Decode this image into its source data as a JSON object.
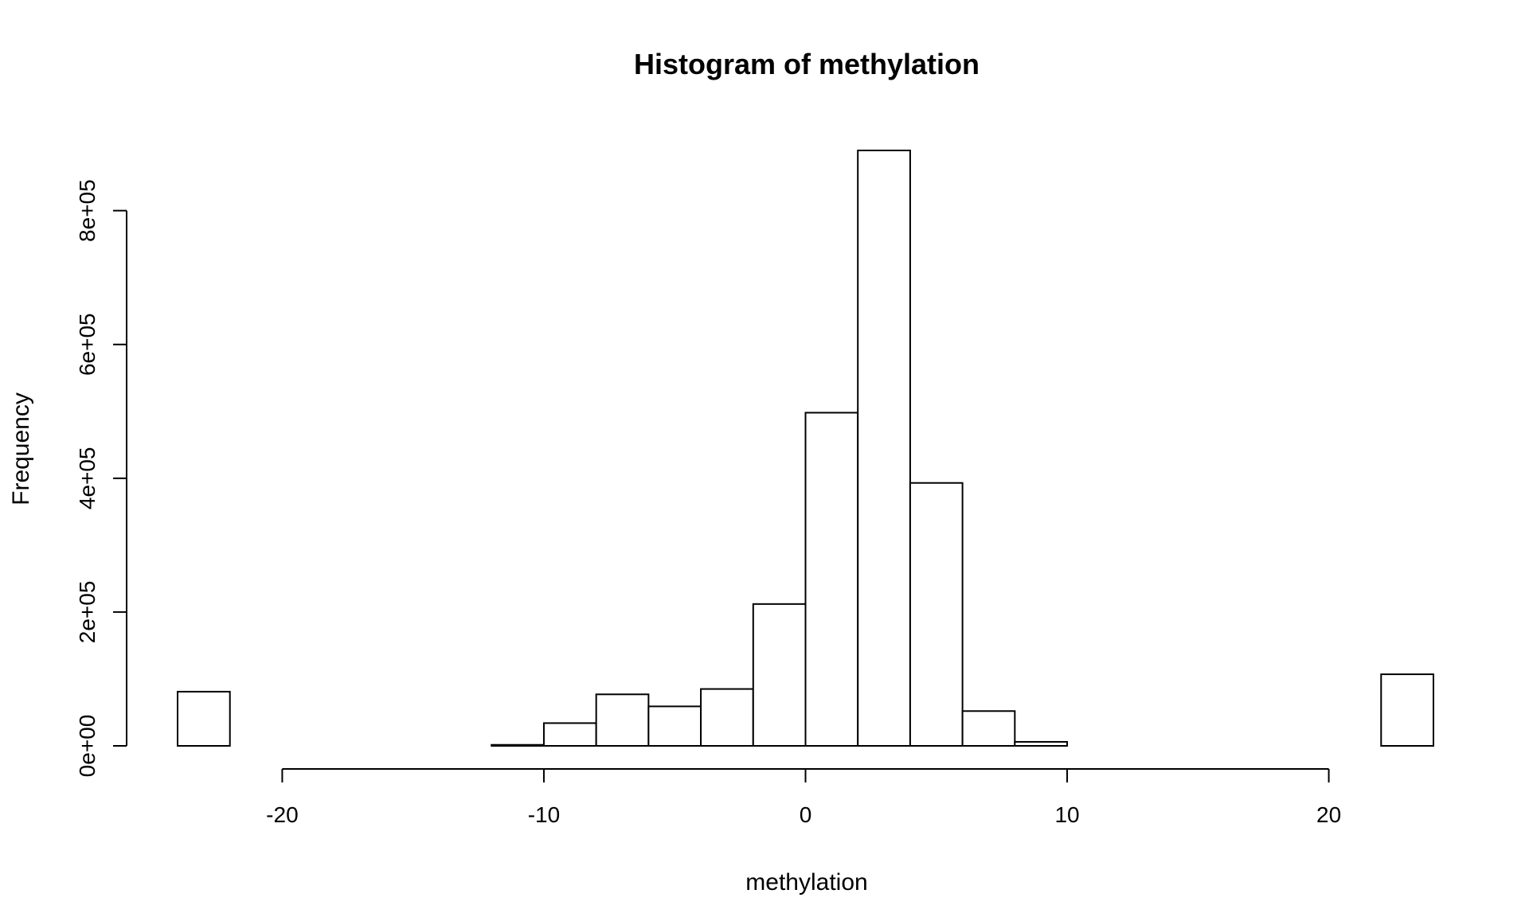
{
  "chart_data": {
    "type": "bar",
    "title": "Histogram of methylation",
    "xlabel": "methylation",
    "ylabel": "Frequency",
    "bin_width": 2,
    "bins": [
      {
        "x0": -24,
        "x1": -22,
        "count": 81000
      },
      {
        "x0": -22,
        "x1": -20,
        "count": 0
      },
      {
        "x0": -20,
        "x1": -18,
        "count": 0
      },
      {
        "x0": -18,
        "x1": -16,
        "count": 0
      },
      {
        "x0": -16,
        "x1": -14,
        "count": 0
      },
      {
        "x0": -14,
        "x1": -12,
        "count": 0
      },
      {
        "x0": -12,
        "x1": -10,
        "count": 1500
      },
      {
        "x0": -10,
        "x1": -8,
        "count": 34000
      },
      {
        "x0": -8,
        "x1": -6,
        "count": 77000
      },
      {
        "x0": -6,
        "x1": -4,
        "count": 59000
      },
      {
        "x0": -4,
        "x1": -2,
        "count": 85000
      },
      {
        "x0": -2,
        "x1": 0,
        "count": 212000
      },
      {
        "x0": 0,
        "x1": 2,
        "count": 498000
      },
      {
        "x0": 2,
        "x1": 4,
        "count": 890000
      },
      {
        "x0": 4,
        "x1": 6,
        "count": 393000
      },
      {
        "x0": 6,
        "x1": 8,
        "count": 52000
      },
      {
        "x0": 8,
        "x1": 10,
        "count": 6000
      },
      {
        "x0": 10,
        "x1": 12,
        "count": 0
      },
      {
        "x0": 12,
        "x1": 14,
        "count": 0
      },
      {
        "x0": 14,
        "x1": 16,
        "count": 0
      },
      {
        "x0": 16,
        "x1": 18,
        "count": 0
      },
      {
        "x0": 18,
        "x1": 20,
        "count": 0
      },
      {
        "x0": 20,
        "x1": 22,
        "count": 0
      },
      {
        "x0": 22,
        "x1": 24,
        "count": 107000
      }
    ],
    "xlim": [
      -24,
      24
    ],
    "ylim": [
      0,
      890000
    ],
    "x_ticks": [
      -20,
      -10,
      0,
      10,
      20
    ],
    "x_tick_labels": [
      "-20",
      "-10",
      "0",
      "10",
      "20"
    ],
    "y_ticks": [
      0,
      200000,
      400000,
      600000,
      800000
    ],
    "y_tick_labels": [
      "0e+00",
      "2e+05",
      "4e+05",
      "6e+05",
      "8e+05"
    ],
    "colors": {
      "bar_fill": "#ffffff",
      "bar_stroke": "#000000",
      "axis": "#000000"
    },
    "grid": false,
    "legend": "none"
  }
}
